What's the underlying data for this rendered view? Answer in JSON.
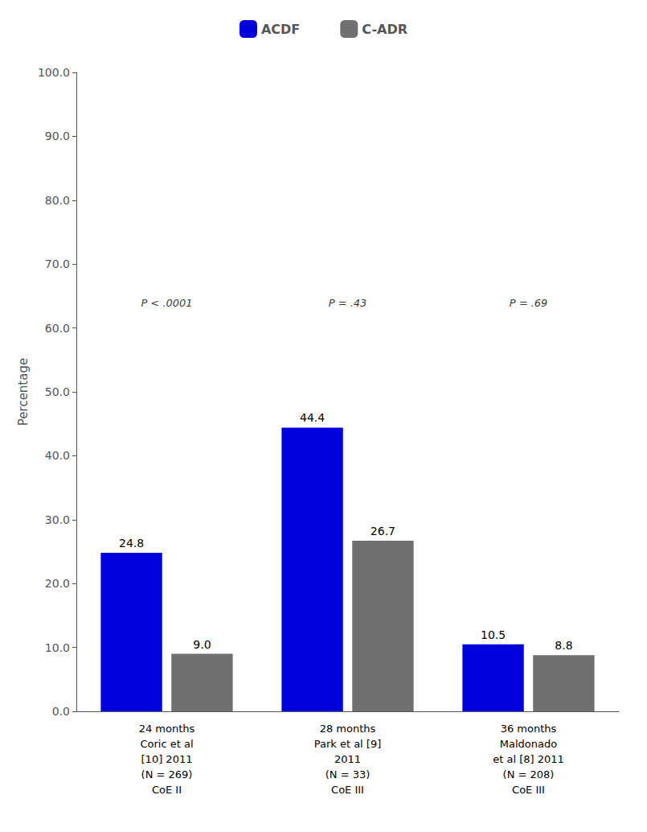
{
  "chart_data": {
    "type": "bar",
    "categories": [
      "24 months\nCoric et al\n[10] 2011\n(N = 269)\nCoE II",
      "28 months\nPark et al [9]\n2011\n(N = 33)\nCoE III",
      "36 months\nMaldonado\net al [8] 2011\n(N = 208)\nCoE III"
    ],
    "series": [
      {
        "name": "ACDF",
        "color": "#0000DD",
        "values": [
          24.8,
          44.4,
          10.5
        ],
        "value_labels": [
          "24.8",
          "44.4",
          "10.5"
        ]
      },
      {
        "name": "C-ADR",
        "color": "#707070",
        "values": [
          9.0,
          26.7,
          8.8
        ],
        "value_labels": [
          "9.0",
          "26.7",
          "8.8"
        ]
      }
    ],
    "ylabel": "Percentage",
    "ylim": [
      0,
      100
    ],
    "yticks": [
      {
        "value": 0,
        "label": "0.0"
      },
      {
        "value": 10,
        "label": "10.0"
      },
      {
        "value": 20,
        "label": "20.0"
      },
      {
        "value": 30,
        "label": "30.0"
      },
      {
        "value": 40,
        "label": "40.0"
      },
      {
        "value": 50,
        "label": "50.0"
      },
      {
        "value": 60,
        "label": "60.0"
      },
      {
        "value": 70,
        "label": "70.0"
      },
      {
        "value": 80,
        "label": "80.0"
      },
      {
        "value": 90,
        "label": "90.0"
      },
      {
        "value": 100,
        "label": "100.0"
      }
    ],
    "annotations": [
      {
        "text": "P < .0001",
        "x": "24 months\nCoric et al\n[10] 2011\n(N = 269)\nCoE II",
        "y": 62.5
      },
      {
        "text": "P = .43",
        "x": "28 months\nPark et al [9]\n2011\n(N = 33)\nCoE III",
        "y": 62.5
      },
      {
        "text": "P = .69",
        "x": "36 months\nMaldonado\net al [8] 2011\n(N = 208)\nCoE III",
        "y": 62.5
      }
    ],
    "data_labels": true,
    "legend": "top",
    "grid": false
  }
}
